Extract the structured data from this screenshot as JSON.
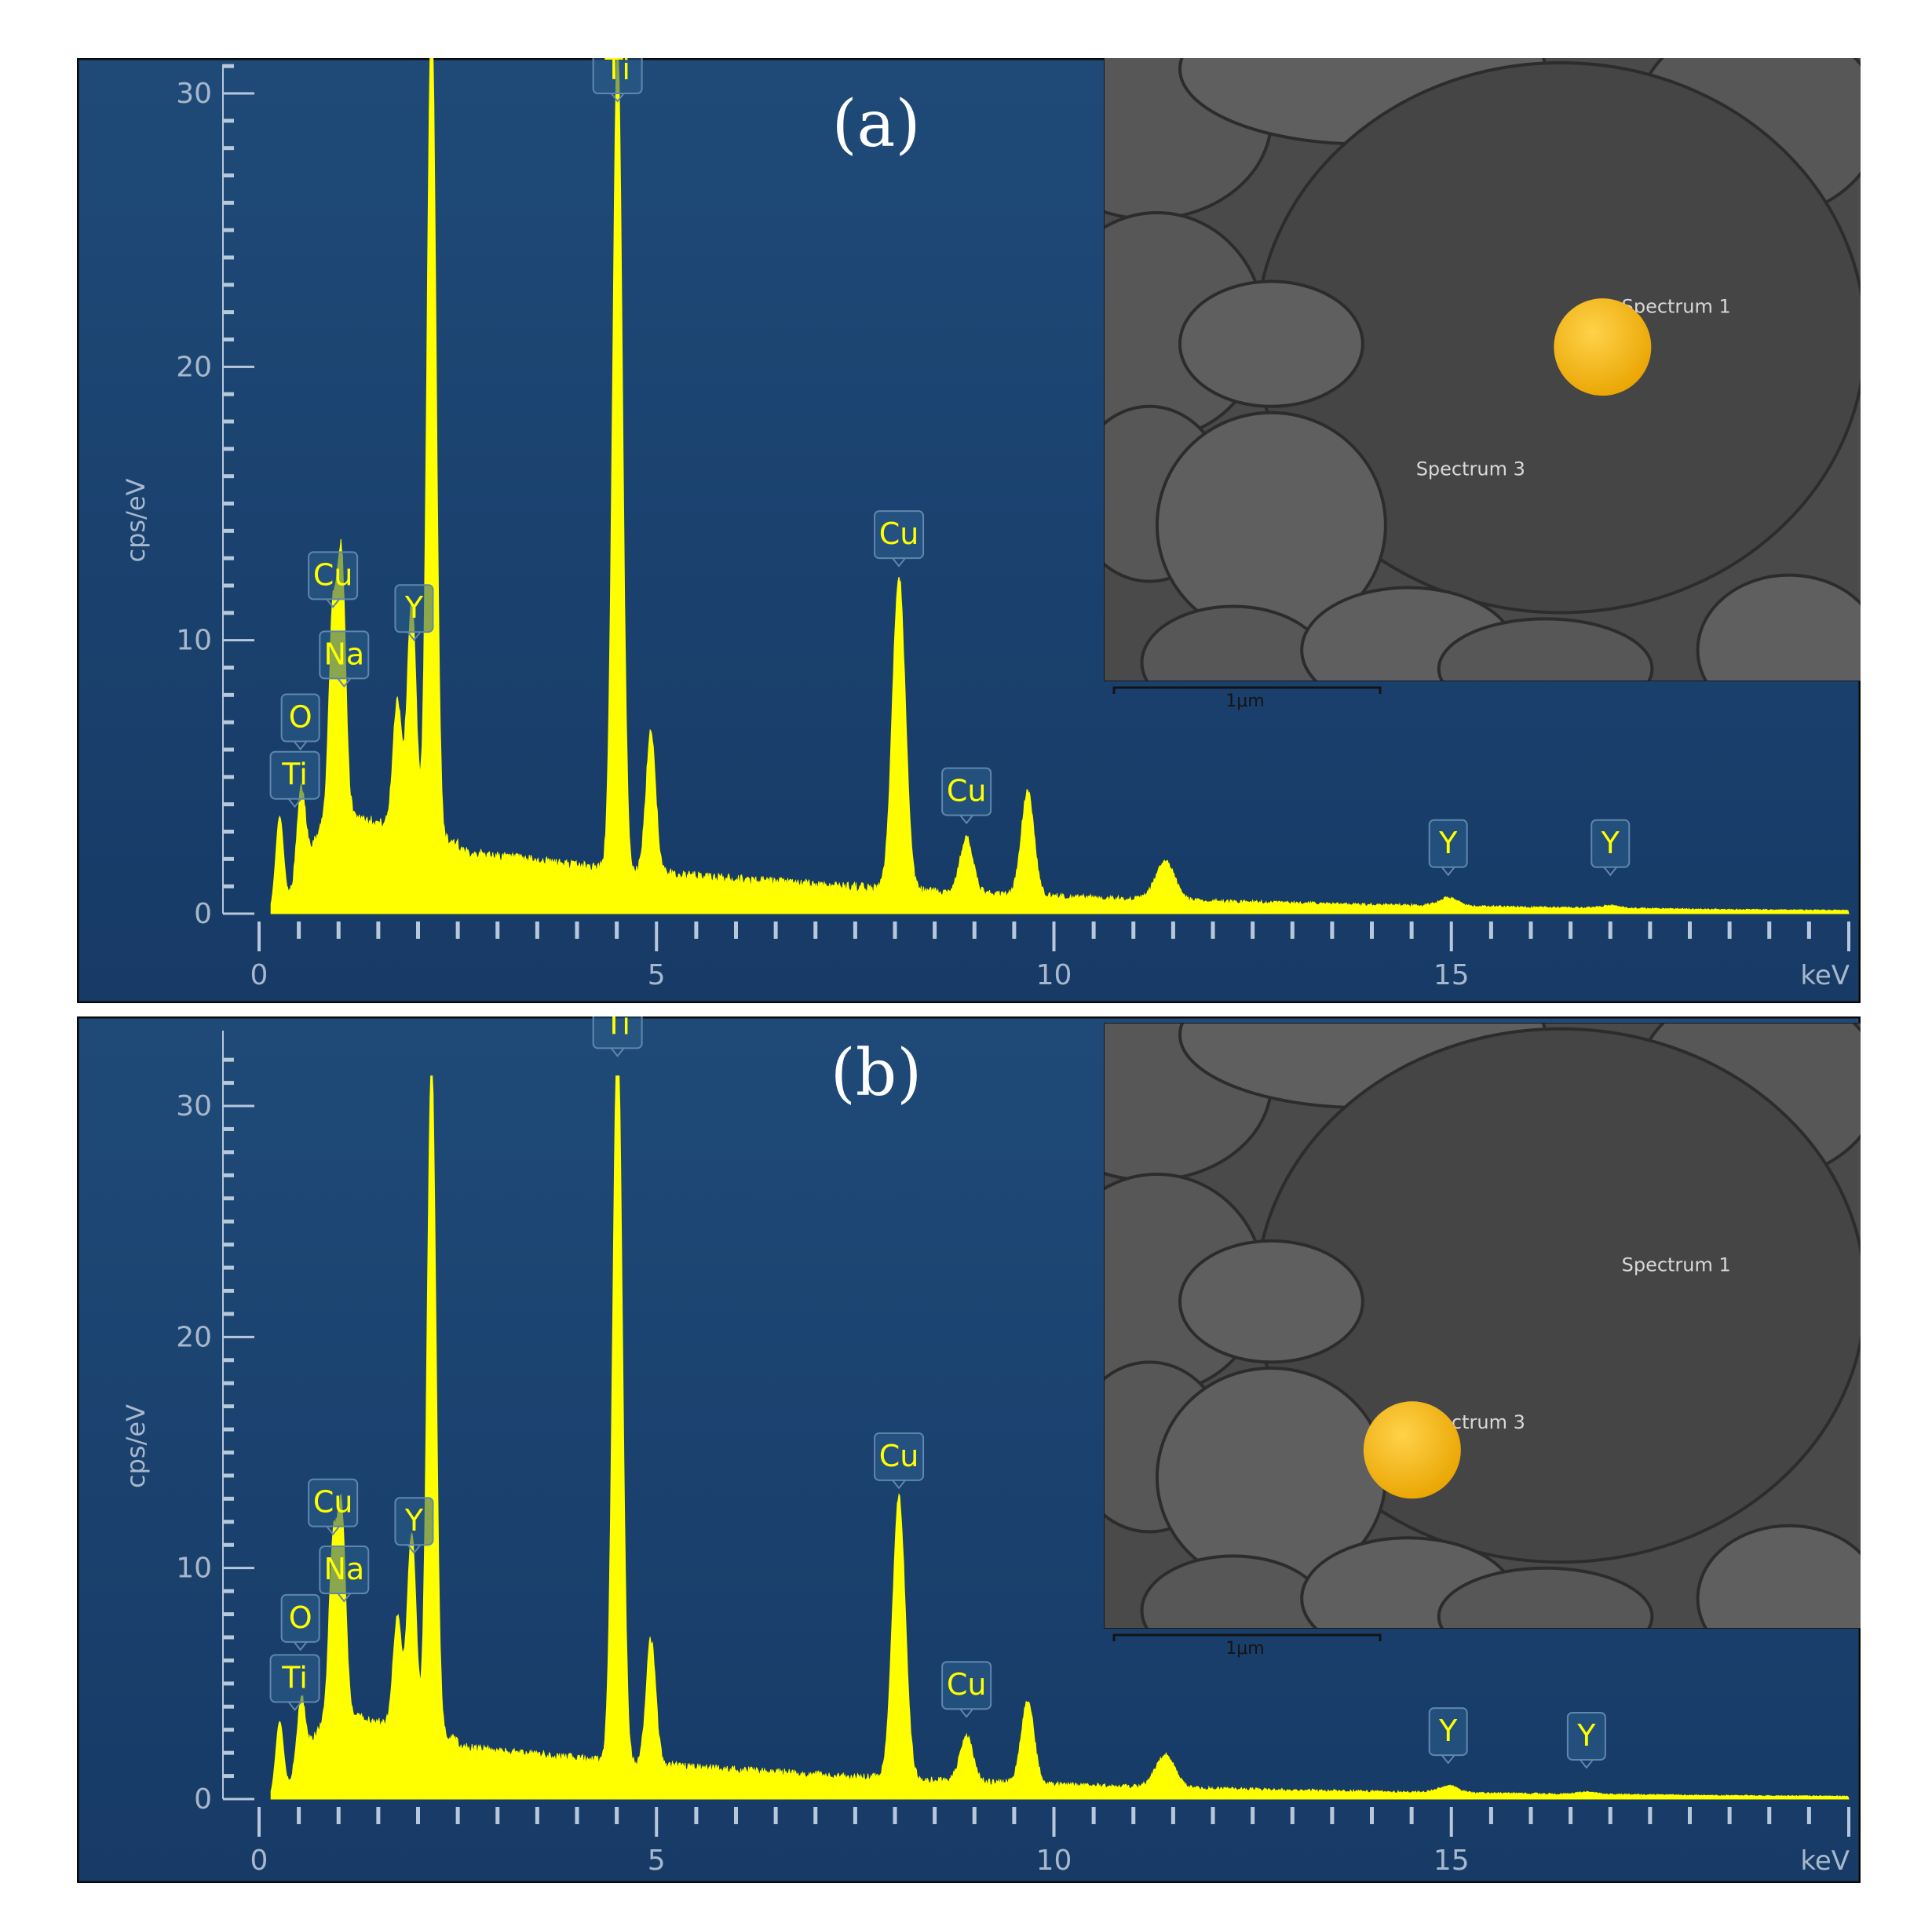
{
  "colors": {
    "background_top": "#1f4a78",
    "background_bottom": "#173a66",
    "spectrum": "#ffff00",
    "label_text": "#ffff00",
    "label_box": "#2c5e8c",
    "axis": "#b8c8dc",
    "axis_text": "#a7b7cc",
    "marker": "#f5b800",
    "sem_bg": "#4a4a4a"
  },
  "chart_data": [
    {
      "type": "line",
      "panel_label": "(a)",
      "xlabel": "keV",
      "ylabel": "cps/eV",
      "xlim": [
        0,
        20
      ],
      "ylim": [
        0,
        30
      ],
      "x_ticks": [
        "0",
        "5",
        "10",
        "15"
      ],
      "y_ticks": [
        "0",
        "10",
        "20",
        "30"
      ],
      "peaks": [
        {
          "keV": 0.26,
          "cps": 3.5
        },
        {
          "keV": 0.53,
          "cps": 3.0
        },
        {
          "keV": 0.93,
          "cps": 7.0
        },
        {
          "keV": 1.04,
          "cps": 9.0
        },
        {
          "keV": 1.74,
          "cps": 4.7
        },
        {
          "keV": 1.92,
          "cps": 8.5
        },
        {
          "keV": 2.17,
          "cps": 31.0
        },
        {
          "keV": 4.51,
          "cps": 30.5
        },
        {
          "keV": 4.93,
          "cps": 5.2
        },
        {
          "keV": 8.05,
          "cps": 11.5
        },
        {
          "keV": 8.9,
          "cps": 2.0
        },
        {
          "keV": 9.67,
          "cps": 3.8
        },
        {
          "keV": 11.4,
          "cps": 1.4
        },
        {
          "keV": 14.96,
          "cps": 0.3
        },
        {
          "keV": 17.0,
          "cps": 0.1
        }
      ],
      "element_labels": [
        {
          "text": "Ti",
          "keV": 0.45,
          "cps": 4.2
        },
        {
          "text": "O",
          "keV": 0.52,
          "cps": 6.3
        },
        {
          "text": "Na",
          "keV": 1.07,
          "cps": 8.6
        },
        {
          "text": "Cu",
          "keV": 0.93,
          "cps": 11.5
        },
        {
          "text": "Y",
          "keV": 1.95,
          "cps": 10.3
        },
        {
          "text": "Ti",
          "keV": 4.51,
          "cps": 30.0
        },
        {
          "text": "Cu",
          "keV": 8.05,
          "cps": 13.0
        },
        {
          "text": "Cu",
          "keV": 8.9,
          "cps": 3.6
        },
        {
          "text": "Y",
          "keV": 14.96,
          "cps": 1.7
        },
        {
          "text": "Y",
          "keV": 17.0,
          "cps": 1.7
        }
      ],
      "inset": {
        "scale_bar": "1μm",
        "spectrum_labels": [
          {
            "text": "Spectrum 1",
            "fx": 0.68,
            "fy": 0.41
          },
          {
            "text": "Spectrum 3",
            "fx": 0.41,
            "fy": 0.67
          }
        ],
        "marker": {
          "fx": 0.655,
          "fy": 0.465
        }
      }
    },
    {
      "type": "line",
      "panel_label": "(b)",
      "xlabel": "keV",
      "ylabel": "cps/eV",
      "xlim": [
        0,
        20
      ],
      "ylim": [
        0,
        30
      ],
      "x_ticks": [
        "0",
        "5",
        "10",
        "15"
      ],
      "y_ticks": [
        "0",
        "10",
        "20",
        "30"
      ],
      "peaks": [
        {
          "keV": 0.26,
          "cps": 3.3
        },
        {
          "keV": 0.53,
          "cps": 2.8
        },
        {
          "keV": 0.93,
          "cps": 7.0
        },
        {
          "keV": 1.04,
          "cps": 8.5
        },
        {
          "keV": 1.74,
          "cps": 4.7
        },
        {
          "keV": 1.92,
          "cps": 8.5
        },
        {
          "keV": 2.17,
          "cps": 29.5
        },
        {
          "keV": 4.51,
          "cps": 32.0
        },
        {
          "keV": 4.93,
          "cps": 5.4
        },
        {
          "keV": 8.05,
          "cps": 12.2
        },
        {
          "keV": 8.9,
          "cps": 2.0
        },
        {
          "keV": 9.67,
          "cps": 3.6
        },
        {
          "keV": 11.4,
          "cps": 1.4
        },
        {
          "keV": 14.96,
          "cps": 0.3
        },
        {
          "keV": 16.7,
          "cps": 0.1
        }
      ],
      "element_labels": [
        {
          "text": "Ti",
          "keV": 0.45,
          "cps": 4.2
        },
        {
          "text": "O",
          "keV": 0.52,
          "cps": 6.8
        },
        {
          "text": "Na",
          "keV": 1.07,
          "cps": 8.9
        },
        {
          "text": "Cu",
          "keV": 0.93,
          "cps": 11.8
        },
        {
          "text": "Y",
          "keV": 1.95,
          "cps": 11.0
        },
        {
          "text": "Ti",
          "keV": 4.51,
          "cps": 32.5
        },
        {
          "text": "Cu",
          "keV": 8.05,
          "cps": 13.8
        },
        {
          "text": "Cu",
          "keV": 8.9,
          "cps": 3.9
        },
        {
          "text": "Y",
          "keV": 14.96,
          "cps": 1.9
        },
        {
          "text": "Y",
          "keV": 16.7,
          "cps": 1.7
        }
      ],
      "inset": {
        "scale_bar": "1μm",
        "spectrum_labels": [
          {
            "text": "Spectrum 1",
            "fx": 0.68,
            "fy": 0.41
          },
          {
            "text": "Spectrum 3",
            "fx": 0.41,
            "fy": 0.67
          }
        ],
        "marker": {
          "fx": 0.405,
          "fy": 0.705
        }
      }
    }
  ]
}
